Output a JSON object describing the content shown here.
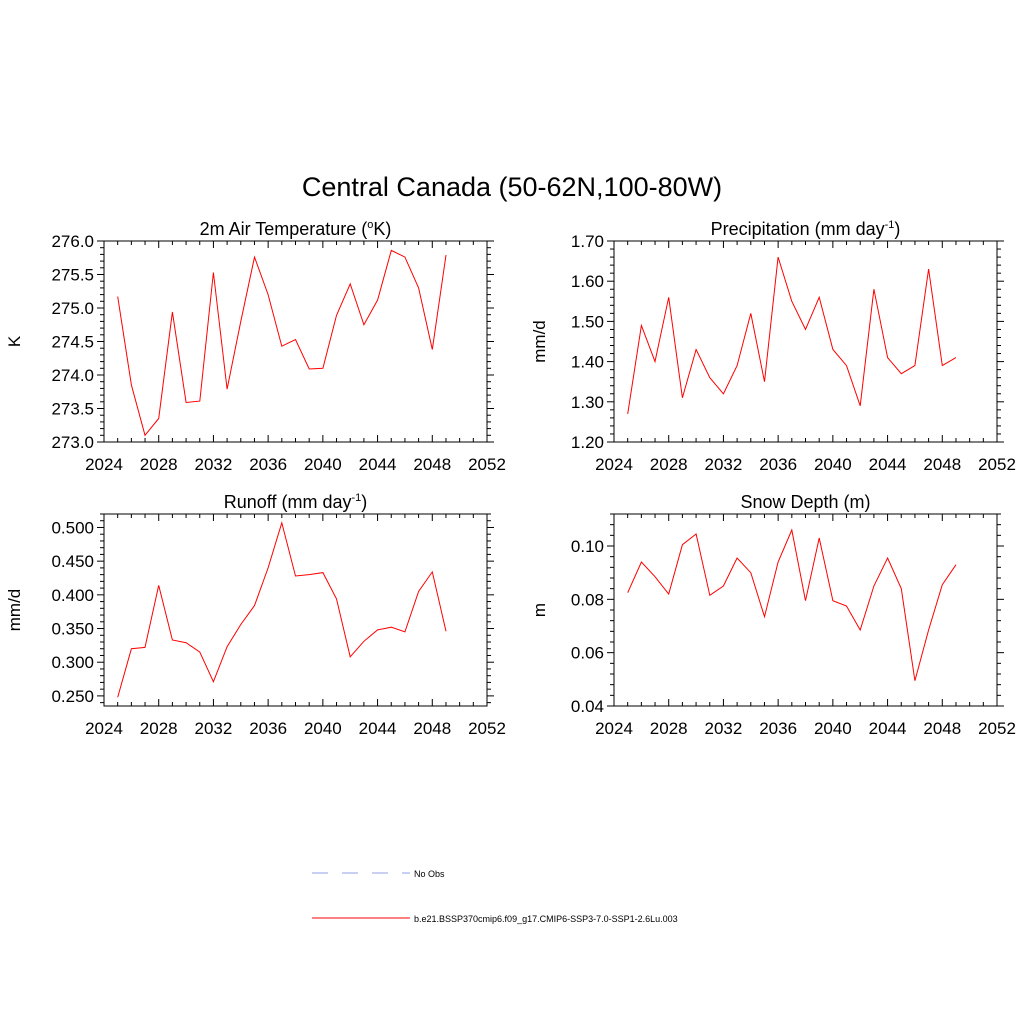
{
  "figure": {
    "title": "Central Canada (50-62N,100-80W)"
  },
  "colors": {
    "model_line": "#ff0000",
    "obs_line": "#aab2ee",
    "axis": "#000000"
  },
  "legend": {
    "items": [
      {
        "label": "No Obs",
        "style": "dashed"
      },
      {
        "label": "b.e21.BSSP370cmip6.f09_g17.CMIP6-SSP3-7.0-SSP1-2.6Lu.003",
        "style": "solid"
      }
    ]
  },
  "chart_data": [
    {
      "type": "line",
      "title": "2m Air Temperature (",
      "title_sup": "o",
      "title_tail": "K)",
      "ylabel": "K",
      "xlim": [
        2024,
        2052
      ],
      "ylim": [
        273.0,
        276.0
      ],
      "xticks": [
        2024,
        2028,
        2032,
        2036,
        2040,
        2044,
        2048,
        2052
      ],
      "yticks": [
        "273.0",
        "273.5",
        "274.0",
        "274.5",
        "275.0",
        "275.5",
        "276.0"
      ],
      "yminor": 0.1,
      "x": [
        2025,
        2026,
        2027,
        2028,
        2029,
        2030,
        2031,
        2032,
        2033,
        2034,
        2035,
        2036,
        2037,
        2038,
        2039,
        2040,
        2041,
        2042,
        2043,
        2044,
        2045,
        2046,
        2047,
        2048,
        2049
      ],
      "values": [
        275.17,
        273.85,
        273.1,
        273.35,
        274.94,
        273.59,
        273.61,
        275.53,
        273.79,
        274.8,
        275.76,
        275.2,
        274.43,
        274.53,
        274.09,
        274.1,
        274.89,
        275.36,
        274.75,
        275.12,
        275.86,
        275.76,
        275.3,
        274.38,
        275.79
      ]
    },
    {
      "type": "line",
      "title": "Precipitation (mm day",
      "title_sup": "-1",
      "title_tail": ")",
      "ylabel": "mm/d",
      "xlim": [
        2024,
        2052
      ],
      "ylim": [
        1.2,
        1.7
      ],
      "xticks": [
        2024,
        2028,
        2032,
        2036,
        2040,
        2044,
        2048,
        2052
      ],
      "yticks": [
        "1.20",
        "1.30",
        "1.40",
        "1.50",
        "1.60",
        "1.70"
      ],
      "yminor": 0.02,
      "x": [
        2025,
        2026,
        2027,
        2028,
        2029,
        2030,
        2031,
        2032,
        2033,
        2034,
        2035,
        2036,
        2037,
        2038,
        2039,
        2040,
        2041,
        2042,
        2043,
        2044,
        2045,
        2046,
        2047,
        2048,
        2049
      ],
      "values": [
        1.27,
        1.49,
        1.4,
        1.56,
        1.31,
        1.43,
        1.36,
        1.32,
        1.39,
        1.52,
        1.35,
        1.66,
        1.55,
        1.48,
        1.56,
        1.43,
        1.39,
        1.29,
        1.58,
        1.41,
        1.37,
        1.39,
        1.63,
        1.39,
        1.41
      ]
    },
    {
      "type": "line",
      "title": "Runoff (mm day",
      "title_sup": "-1",
      "title_tail": ")",
      "ylabel": "mm/d",
      "xlim": [
        2024,
        2052
      ],
      "ylim": [
        0.235,
        0.52
      ],
      "xticks": [
        2024,
        2028,
        2032,
        2036,
        2040,
        2044,
        2048,
        2052
      ],
      "yticks": [
        "0.250",
        "0.300",
        "0.350",
        "0.400",
        "0.450",
        "0.500"
      ],
      "ytickvals": [
        0.25,
        0.3,
        0.35,
        0.4,
        0.45,
        0.5
      ],
      "yminor": 0.01,
      "x": [
        2025,
        2026,
        2027,
        2028,
        2029,
        2030,
        2031,
        2032,
        2033,
        2034,
        2035,
        2036,
        2037,
        2038,
        2039,
        2040,
        2041,
        2042,
        2043,
        2044,
        2045,
        2046,
        2047,
        2048,
        2049
      ],
      "values": [
        0.248,
        0.32,
        0.322,
        0.414,
        0.333,
        0.329,
        0.315,
        0.271,
        0.323,
        0.356,
        0.384,
        0.44,
        0.507,
        0.428,
        0.43,
        0.433,
        0.394,
        0.308,
        0.331,
        0.348,
        0.352,
        0.345,
        0.405,
        0.434,
        0.346
      ]
    },
    {
      "type": "line",
      "title": "Snow Depth (m)",
      "title_sup": "",
      "title_tail": "",
      "ylabel": "m",
      "xlim": [
        2024,
        2052
      ],
      "ylim": [
        0.04,
        0.112
      ],
      "xticks": [
        2024,
        2028,
        2032,
        2036,
        2040,
        2044,
        2048,
        2052
      ],
      "yticks": [
        "0.04",
        "0.06",
        "0.08",
        "0.10"
      ],
      "ytickvals": [
        0.04,
        0.06,
        0.08,
        0.1
      ],
      "yminor": 0.004,
      "x": [
        2025,
        2026,
        2027,
        2028,
        2029,
        2030,
        2031,
        2032,
        2033,
        2034,
        2035,
        2036,
        2037,
        2038,
        2039,
        2040,
        2041,
        2042,
        2043,
        2044,
        2045,
        2046,
        2047,
        2048,
        2049
      ],
      "values": [
        0.0825,
        0.094,
        0.0885,
        0.082,
        0.1005,
        0.1045,
        0.0815,
        0.085,
        0.0955,
        0.09,
        0.0735,
        0.094,
        0.106,
        0.0795,
        0.103,
        0.0795,
        0.0775,
        0.0685,
        0.085,
        0.0955,
        0.084,
        0.0495,
        0.0685,
        0.0855,
        0.093
      ]
    }
  ]
}
